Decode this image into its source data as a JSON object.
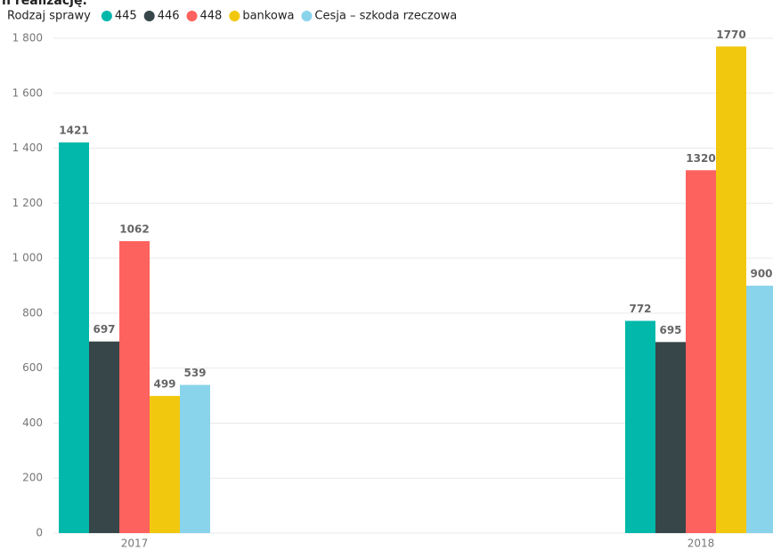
{
  "chart_data": {
    "type": "bar",
    "title": "n realizację.",
    "legend_title": "Rodzaj sprawy",
    "categories": [
      "2017",
      "2018"
    ],
    "series": [
      {
        "name": "445",
        "color": "#01B8AA",
        "values": [
          1421,
          772
        ]
      },
      {
        "name": "446",
        "color": "#374649",
        "values": [
          697,
          695
        ]
      },
      {
        "name": "448",
        "color": "#FD625E",
        "values": [
          1062,
          1320
        ]
      },
      {
        "name": "bankowa",
        "color": "#F2C80F",
        "values": [
          499,
          1770
        ]
      },
      {
        "name": "Cesja – szkoda rzeczowa",
        "color": "#8AD4EB",
        "values": [
          539,
          900
        ]
      }
    ],
    "ylim": [
      0,
      1800
    ],
    "yticks": [
      0,
      200,
      400,
      600,
      800,
      {
        "value": 1000,
        "label": "1 000"
      },
      {
        "value": 1200,
        "label": "1 200"
      },
      {
        "value": 1400,
        "label": "1 400"
      },
      {
        "value": 1600,
        "label": "1 600"
      },
      {
        "value": 1800,
        "label": "1 800"
      }
    ],
    "grid": true,
    "legend": "top"
  }
}
